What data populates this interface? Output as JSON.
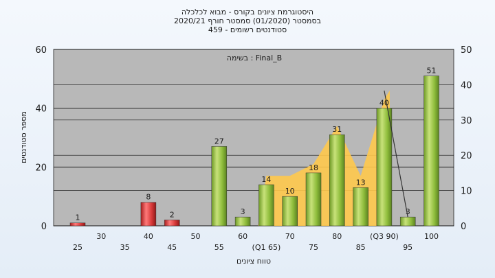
{
  "chart_data": {
    "type": "bar",
    "title_lines": [
      "היסטוגרמת ציונים בקורס - מבוא לכלכלה",
      "בסמסטר  (01/2020)  סמסטר חורף  2020/21",
      "סטודנטים רשומים - 459"
    ],
    "annotation": "בשימה : Final_B",
    "ylabel": "מספר סטודנטים",
    "xlabel": "טווח ציונים",
    "ylim_left": [
      0,
      60
    ],
    "ylim_right": [
      0,
      50
    ],
    "yticks_left": [
      0,
      20,
      40,
      60
    ],
    "yticks_right": [
      0,
      10,
      20,
      30,
      40,
      50
    ],
    "grid": true,
    "categories": [
      25,
      30,
      35,
      40,
      45,
      50,
      55,
      60,
      65,
      70,
      75,
      80,
      85,
      90,
      95,
      100
    ],
    "x_tick_labels": [
      "25",
      "30",
      "35",
      "40",
      "45",
      "50",
      "55",
      "60",
      "(Q1 65)",
      "70",
      "75",
      "80",
      "85",
      "(Q3 90)",
      "95",
      "100"
    ],
    "values": [
      1,
      0,
      0,
      8,
      2,
      0,
      27,
      3,
      14,
      10,
      18,
      31,
      13,
      40,
      3,
      51
    ],
    "value_labels": [
      "1",
      "",
      "",
      "8",
      "2",
      "",
      "27",
      "3",
      "14",
      "10",
      "18",
      "31",
      "13",
      "40",
      "3",
      "51"
    ],
    "colors": {
      "fail": "#d83a3a",
      "pass": "#8fbd3c",
      "area": "#ffc94d",
      "plot_bg": "#b8b8b8",
      "grid": "#111111"
    }
  }
}
